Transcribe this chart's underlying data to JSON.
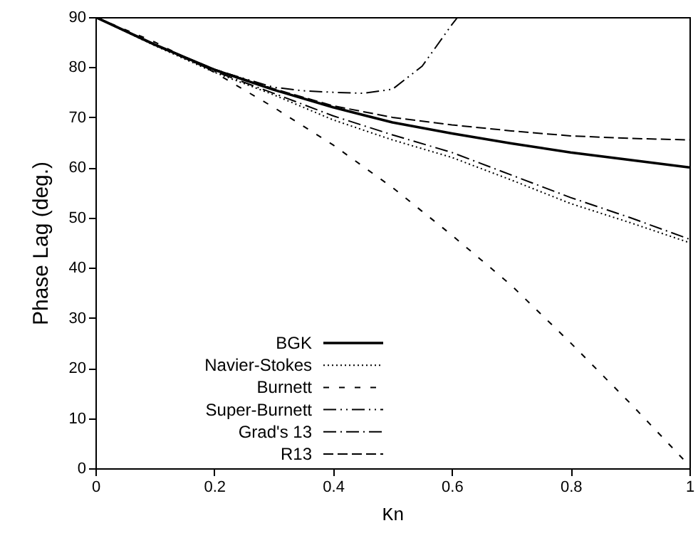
{
  "chart_data": {
    "type": "line",
    "xlabel": "Kn",
    "ylabel": "Phase Lag (deg.)",
    "xlim": [
      0,
      1
    ],
    "xticks": [
      0,
      0.2,
      0.4,
      0.6,
      0.8,
      1
    ],
    "ylim": [
      0,
      90
    ],
    "yticks": [
      0,
      10,
      20,
      30,
      40,
      50,
      60,
      70,
      80,
      90
    ],
    "grid": false,
    "legend": "bottom left",
    "marker": "none",
    "series": [
      {
        "name": "BGK",
        "color": "#000000",
        "line_style": "solid",
        "x": [
          0,
          0.1,
          0.2,
          0.3,
          0.4,
          0.5,
          0.6,
          0.7,
          0.8,
          0.9,
          1
        ],
        "values": [
          90,
          84.5,
          79.5,
          75.5,
          72,
          69,
          66.8,
          64.8,
          63,
          61.5,
          60
        ]
      },
      {
        "name": "Navier-Stokes",
        "color": "#000000",
        "line_style": "dotted",
        "x": [
          0,
          0.1,
          0.2,
          0.3,
          0.4,
          0.5,
          0.6,
          0.7,
          0.8,
          0.9,
          1
        ],
        "values": [
          90,
          84.3,
          79,
          74.5,
          69.5,
          65.5,
          62,
          57.5,
          52.8,
          49,
          45
        ]
      },
      {
        "name": "Burnett",
        "color": "#000000",
        "line_style": "dashed",
        "x": [
          0,
          0.1,
          0.2,
          0.3,
          0.4,
          0.5,
          0.6,
          0.7,
          0.8,
          0.9,
          1
        ],
        "values": [
          90,
          85,
          79,
          72,
          64.5,
          56,
          46.5,
          36.5,
          25,
          13,
          0.5
        ]
      },
      {
        "name": "Super-Burnett",
        "color": "#000000",
        "line_style": "dashdotdot",
        "x": [
          0,
          0.1,
          0.2,
          0.3,
          0.35,
          0.4,
          0.45,
          0.5,
          0.55,
          0.6,
          0.61
        ],
        "values": [
          90,
          84.5,
          79.5,
          76,
          75.3,
          75,
          74.8,
          75.6,
          80.2,
          88.5,
          90
        ]
      },
      {
        "name": "Grad's 13",
        "color": "#000000",
        "line_style": "dashdot",
        "x": [
          0,
          0.1,
          0.2,
          0.3,
          0.4,
          0.5,
          0.6,
          0.7,
          0.8,
          0.9,
          1
        ],
        "values": [
          90,
          84.4,
          79.2,
          74.8,
          70.3,
          66.5,
          63,
          58.5,
          54,
          50,
          45.7
        ]
      },
      {
        "name": "R13",
        "color": "#000000",
        "line_style": "longdash",
        "x": [
          0,
          0.1,
          0.2,
          0.3,
          0.4,
          0.5,
          0.6,
          0.7,
          0.8,
          0.9,
          1
        ],
        "values": [
          90,
          84.5,
          79.6,
          75.7,
          72.3,
          70,
          68.5,
          67.3,
          66.3,
          65.8,
          65.5
        ]
      }
    ]
  }
}
